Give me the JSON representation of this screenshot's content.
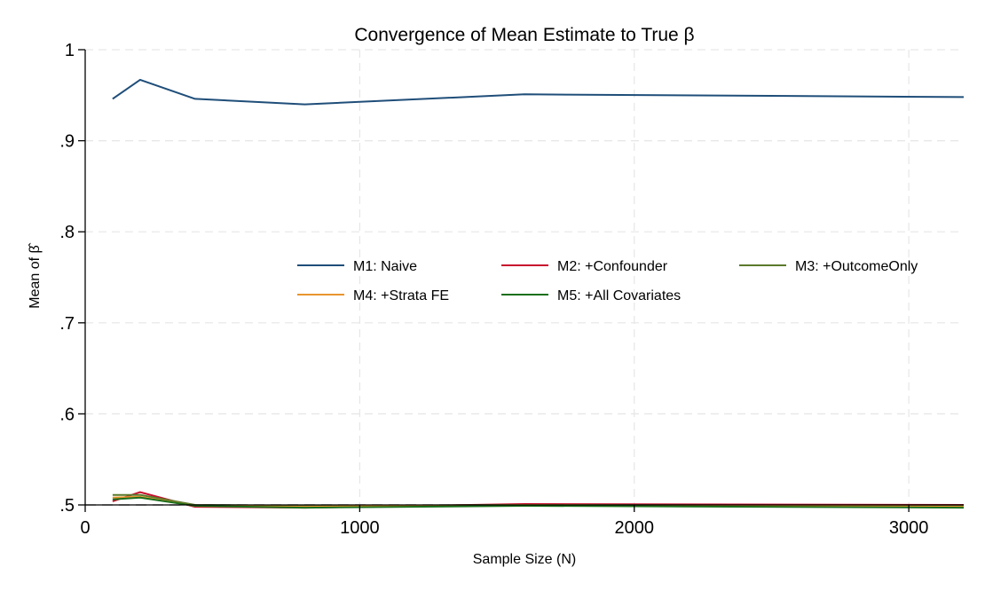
{
  "chart_data": {
    "type": "line",
    "title": "Convergence of Mean Estimate to True β",
    "xlabel": "Sample Size (N)",
    "ylabel": "Mean of β̂",
    "xlim": [
      0,
      3200
    ],
    "ylim": [
      0.5,
      1.0
    ],
    "x_ticks": [
      0,
      1000,
      2000,
      3000
    ],
    "x_tick_labels": [
      "0",
      "1000",
      "2000",
      "3000"
    ],
    "y_ticks": [
      0.5,
      0.6,
      0.7,
      0.8,
      0.9,
      1.0
    ],
    "y_tick_labels": [
      ".5",
      ".6",
      ".7",
      ".8",
      ".9",
      "1"
    ],
    "grid": true,
    "legend_position": "center-right",
    "reference_line": {
      "y": 0.5,
      "color": "#999999",
      "style": "dashed"
    },
    "x": [
      100,
      200,
      400,
      800,
      1600,
      3200
    ],
    "series": [
      {
        "name": "M1: Naive",
        "color": "#1f4e79",
        "values": [
          0.946,
          0.967,
          0.946,
          0.94,
          0.951,
          0.948
        ]
      },
      {
        "name": "M2: +Confounder",
        "color": "#c8102e",
        "values": [
          0.504,
          0.514,
          0.498,
          0.497,
          0.501,
          0.5
        ]
      },
      {
        "name": "M3: +OutcomeOnly",
        "color": "#5a7a2b",
        "values": [
          0.511,
          0.511,
          0.5,
          0.499,
          0.5,
          0.499
        ]
      },
      {
        "name": "M4: +Strata FE",
        "color": "#e8952e",
        "values": [
          0.508,
          0.509,
          0.499,
          0.498,
          0.5,
          0.498
        ]
      },
      {
        "name": "M5: +All Covariates",
        "color": "#1b6e1b",
        "values": [
          0.506,
          0.508,
          0.499,
          0.497,
          0.499,
          0.497
        ]
      }
    ]
  }
}
